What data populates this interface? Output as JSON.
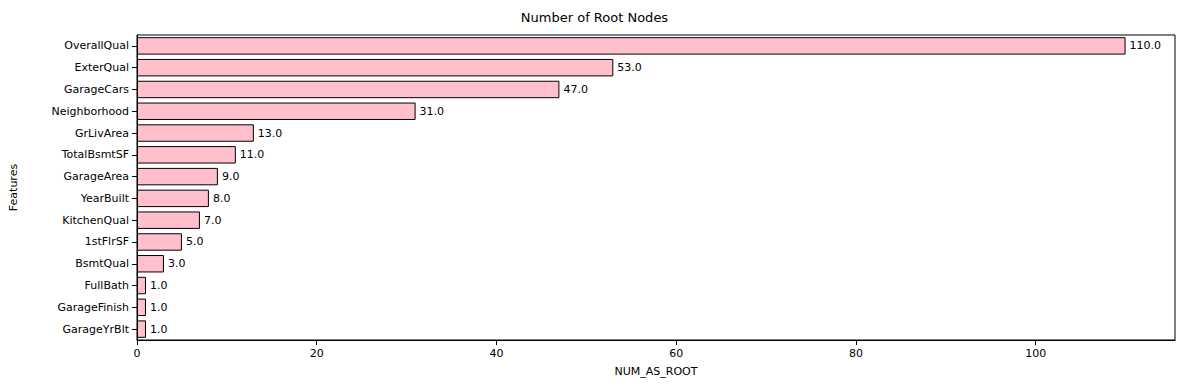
{
  "chart_data": {
    "type": "bar",
    "title": "Number of Root Nodes",
    "x_label": "NUM_AS_ROOT",
    "y_label": "Features",
    "orientation": "horizontal",
    "categories": [
      "OverallQual",
      "ExterQual",
      "GarageCars",
      "Neighborhood",
      "GrLivArea",
      "TotalBsmtSF",
      "GarageArea",
      "YearBuilt",
      "KitchenQual",
      "1stFlrSF",
      "BsmtQual",
      "FullBath",
      "GarageFinish",
      "GarageYrBlt"
    ],
    "values": [
      110,
      53,
      47,
      31,
      13,
      11,
      9,
      8,
      7,
      5,
      3,
      1,
      1,
      1
    ],
    "value_labels": [
      "110.0",
      "53.0",
      "47.0",
      "31.0",
      "13.0",
      "11.0",
      "9.0",
      "8.0",
      "7.0",
      "5.0",
      "3.0",
      "1.0",
      "1.0",
      "1.0"
    ],
    "data_labels": true,
    "color": "#ffc0cb",
    "xlim": [
      0,
      115.5
    ],
    "xticks": [
      0,
      20,
      40,
      60,
      80,
      100
    ],
    "grid": false
  }
}
